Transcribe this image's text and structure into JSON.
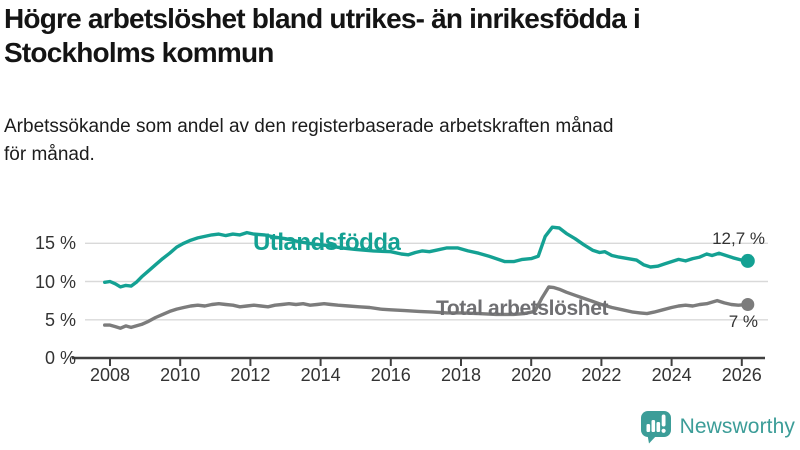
{
  "header": {
    "title_lines": [
      "Högre arbetslöshet bland utrikes- än inrikesfödda i",
      "Stockholms kommun"
    ],
    "subtitle_lines": [
      "Arbetssökande som andel av den registerbaserade arbetskraften månad",
      "för månad."
    ]
  },
  "chart_data": {
    "type": "line",
    "title": "Högre arbetslöshet bland utrikes- än inrikesfödda i Stockholms kommun",
    "subtitle": "Arbetssökande som andel av den registerbaserade arbetskraften månad för månad.",
    "unit": "%",
    "grid": true,
    "grid_color": "#D9D9D9",
    "axis_color": "#404040",
    "tick_label_color": "#333333",
    "x_axis": {
      "min": 2007.85,
      "max": 2026.3,
      "ticks": [
        {
          "value": 2008,
          "label": "2008"
        },
        {
          "value": 2010,
          "label": "2010"
        },
        {
          "value": 2012,
          "label": "2012"
        },
        {
          "value": 2014,
          "label": "2014"
        },
        {
          "value": 2016,
          "label": "2016"
        },
        {
          "value": 2018,
          "label": "2018"
        },
        {
          "value": 2020,
          "label": "2020"
        },
        {
          "value": 2022,
          "label": "2022"
        },
        {
          "value": 2024,
          "label": "2024"
        },
        {
          "value": 2026,
          "label": "2026"
        }
      ]
    },
    "y_axis": {
      "min": 0,
      "max": 17.5,
      "ticks": [
        {
          "value": 0,
          "label": "0 %"
        },
        {
          "value": 5,
          "label": "5 %"
        },
        {
          "value": 10,
          "label": "10 %"
        },
        {
          "value": 15,
          "label": "15 %"
        }
      ]
    },
    "series": [
      {
        "id": "utlandsfodda",
        "name": "Utlandsfödda",
        "color": "#14A193",
        "end_label": "12,7 %",
        "end_value": 12.7,
        "points": [
          [
            2007.85,
            9.9
          ],
          [
            2008.0,
            10.0
          ],
          [
            2008.15,
            9.7
          ],
          [
            2008.3,
            9.3
          ],
          [
            2008.45,
            9.5
          ],
          [
            2008.6,
            9.4
          ],
          [
            2008.75,
            9.9
          ],
          [
            2008.9,
            10.6
          ],
          [
            2009.1,
            11.4
          ],
          [
            2009.3,
            12.2
          ],
          [
            2009.5,
            13.0
          ],
          [
            2009.7,
            13.7
          ],
          [
            2009.9,
            14.5
          ],
          [
            2010.1,
            15.0
          ],
          [
            2010.3,
            15.4
          ],
          [
            2010.5,
            15.7
          ],
          [
            2010.7,
            15.9
          ],
          [
            2010.9,
            16.1
          ],
          [
            2011.1,
            16.2
          ],
          [
            2011.3,
            16.0
          ],
          [
            2011.5,
            16.2
          ],
          [
            2011.7,
            16.1
          ],
          [
            2011.9,
            16.4
          ],
          [
            2012.1,
            16.2
          ],
          [
            2012.4,
            16.1
          ],
          [
            2012.7,
            15.8
          ],
          [
            2013.0,
            15.6
          ],
          [
            2013.4,
            15.2
          ],
          [
            2013.8,
            14.9
          ],
          [
            2014.2,
            14.7
          ],
          [
            2014.6,
            14.4
          ],
          [
            2015.0,
            14.2
          ],
          [
            2015.5,
            14.0
          ],
          [
            2016.0,
            13.9
          ],
          [
            2016.3,
            13.6
          ],
          [
            2016.5,
            13.5
          ],
          [
            2016.7,
            13.8
          ],
          [
            2016.9,
            14.0
          ],
          [
            2017.1,
            13.9
          ],
          [
            2017.3,
            14.1
          ],
          [
            2017.6,
            14.4
          ],
          [
            2017.9,
            14.4
          ],
          [
            2018.2,
            14.0
          ],
          [
            2018.5,
            13.7
          ],
          [
            2018.8,
            13.3
          ],
          [
            2019.0,
            13.0
          ],
          [
            2019.25,
            12.6
          ],
          [
            2019.5,
            12.6
          ],
          [
            2019.75,
            12.9
          ],
          [
            2020.0,
            13.0
          ],
          [
            2020.2,
            13.3
          ],
          [
            2020.4,
            15.9
          ],
          [
            2020.6,
            17.1
          ],
          [
            2020.8,
            17.0
          ],
          [
            2021.0,
            16.3
          ],
          [
            2021.25,
            15.6
          ],
          [
            2021.5,
            14.8
          ],
          [
            2021.75,
            14.1
          ],
          [
            2021.95,
            13.8
          ],
          [
            2022.1,
            13.9
          ],
          [
            2022.3,
            13.4
          ],
          [
            2022.5,
            13.2
          ],
          [
            2022.75,
            13.0
          ],
          [
            2023.0,
            12.8
          ],
          [
            2023.2,
            12.2
          ],
          [
            2023.4,
            11.9
          ],
          [
            2023.6,
            12.0
          ],
          [
            2023.8,
            12.3
          ],
          [
            2024.0,
            12.6
          ],
          [
            2024.2,
            12.9
          ],
          [
            2024.4,
            12.7
          ],
          [
            2024.6,
            13.0
          ],
          [
            2024.8,
            13.2
          ],
          [
            2025.0,
            13.6
          ],
          [
            2025.15,
            13.4
          ],
          [
            2025.35,
            13.7
          ],
          [
            2025.55,
            13.4
          ],
          [
            2025.75,
            13.1
          ],
          [
            2026.0,
            12.8
          ],
          [
            2026.17,
            12.7
          ]
        ]
      },
      {
        "id": "total",
        "name": "Total arbetslöshet",
        "color": "#7C7C7C",
        "label_color": "#6F6F72",
        "end_label": "7 %",
        "end_value": 7,
        "points": [
          [
            2007.85,
            4.3
          ],
          [
            2008.0,
            4.3
          ],
          [
            2008.15,
            4.1
          ],
          [
            2008.3,
            3.9
          ],
          [
            2008.45,
            4.2
          ],
          [
            2008.6,
            4.0
          ],
          [
            2008.75,
            4.2
          ],
          [
            2008.9,
            4.4
          ],
          [
            2009.1,
            4.8
          ],
          [
            2009.3,
            5.3
          ],
          [
            2009.5,
            5.7
          ],
          [
            2009.7,
            6.1
          ],
          [
            2009.9,
            6.4
          ],
          [
            2010.1,
            6.6
          ],
          [
            2010.3,
            6.8
          ],
          [
            2010.5,
            6.9
          ],
          [
            2010.7,
            6.8
          ],
          [
            2010.9,
            7.0
          ],
          [
            2011.1,
            7.1
          ],
          [
            2011.3,
            7.0
          ],
          [
            2011.5,
            6.9
          ],
          [
            2011.7,
            6.7
          ],
          [
            2011.9,
            6.8
          ],
          [
            2012.1,
            6.9
          ],
          [
            2012.3,
            6.8
          ],
          [
            2012.5,
            6.7
          ],
          [
            2012.7,
            6.9
          ],
          [
            2012.9,
            7.0
          ],
          [
            2013.1,
            7.1
          ],
          [
            2013.3,
            7.0
          ],
          [
            2013.5,
            7.1
          ],
          [
            2013.7,
            6.9
          ],
          [
            2013.9,
            7.0
          ],
          [
            2014.1,
            7.1
          ],
          [
            2014.3,
            7.0
          ],
          [
            2014.5,
            6.9
          ],
          [
            2014.8,
            6.8
          ],
          [
            2015.1,
            6.7
          ],
          [
            2015.4,
            6.6
          ],
          [
            2015.7,
            6.4
          ],
          [
            2016.0,
            6.3
          ],
          [
            2016.4,
            6.2
          ],
          [
            2016.8,
            6.1
          ],
          [
            2017.2,
            6.0
          ],
          [
            2017.6,
            5.9
          ],
          [
            2018.0,
            5.9
          ],
          [
            2018.5,
            5.8
          ],
          [
            2019.0,
            5.7
          ],
          [
            2019.5,
            5.7
          ],
          [
            2019.8,
            5.8
          ],
          [
            2020.1,
            6.1
          ],
          [
            2020.3,
            7.8
          ],
          [
            2020.5,
            9.3
          ],
          [
            2020.65,
            9.2
          ],
          [
            2020.8,
            9.0
          ],
          [
            2021.0,
            8.6
          ],
          [
            2021.25,
            8.2
          ],
          [
            2021.5,
            7.8
          ],
          [
            2021.75,
            7.4
          ],
          [
            2022.0,
            7.0
          ],
          [
            2022.3,
            6.6
          ],
          [
            2022.6,
            6.3
          ],
          [
            2022.9,
            6.0
          ],
          [
            2023.1,
            5.9
          ],
          [
            2023.3,
            5.8
          ],
          [
            2023.5,
            6.0
          ],
          [
            2023.75,
            6.3
          ],
          [
            2024.0,
            6.6
          ],
          [
            2024.2,
            6.8
          ],
          [
            2024.4,
            6.9
          ],
          [
            2024.6,
            6.8
          ],
          [
            2024.8,
            7.0
          ],
          [
            2025.0,
            7.1
          ],
          [
            2025.3,
            7.5
          ],
          [
            2025.5,
            7.2
          ],
          [
            2025.7,
            7.0
          ],
          [
            2025.9,
            6.9
          ],
          [
            2026.17,
            7.0
          ]
        ]
      }
    ]
  },
  "branding": {
    "logo_text": "Newsworthy",
    "logo_color": "#3C9D98",
    "logo_icon": "bar-chart-speech-bubble"
  }
}
